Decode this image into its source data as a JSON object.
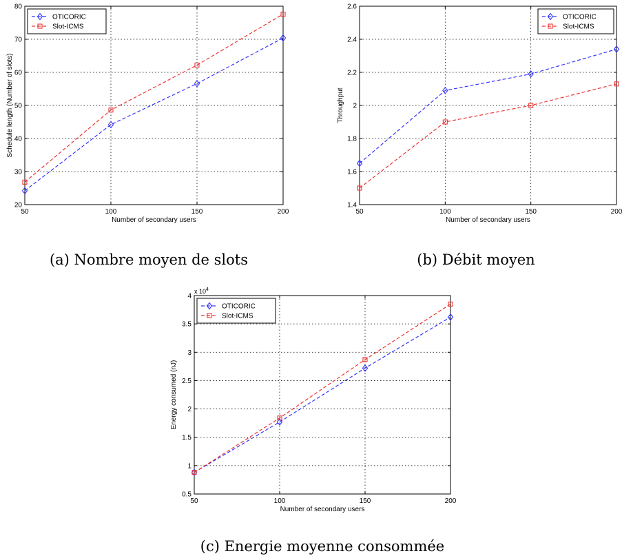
{
  "chart_data": [
    {
      "type": "line",
      "caption": "(a) Nombre moyen de slots",
      "xlabel": "Number of secondary users",
      "ylabel": "Schedule length (Number of slots)",
      "x": [
        50,
        100,
        150,
        200
      ],
      "xlim": [
        50,
        200
      ],
      "ylim": [
        20,
        80
      ],
      "xticks": [
        "50",
        "100",
        "150",
        "200"
      ],
      "yticks": [
        "20",
        "30",
        "40",
        "50",
        "60",
        "70",
        "80"
      ],
      "grid": true,
      "legend_position": "top-left",
      "series": [
        {
          "name": "OTICORIC",
          "values": [
            24.2,
            44.2,
            56.6,
            70.4
          ],
          "color": "#3333ff",
          "marker": "diamond"
        },
        {
          "name": "Slot-ICMS",
          "values": [
            26.8,
            48.6,
            62.2,
            77.6
          ],
          "color": "#ee3333",
          "marker": "square"
        }
      ]
    },
    {
      "type": "line",
      "caption": "(b) Débit moyen",
      "xlabel": "Number of secondary users",
      "ylabel": "Throughput",
      "x": [
        50,
        100,
        150,
        200
      ],
      "xlim": [
        50,
        200
      ],
      "ylim": [
        1.4,
        2.6
      ],
      "xticks": [
        "50",
        "100",
        "150",
        "200"
      ],
      "yticks": [
        "1.4",
        "1.6",
        "1.8",
        "2",
        "2.2",
        "2.4",
        "2.6"
      ],
      "grid": true,
      "legend_position": "top-right",
      "series": [
        {
          "name": "OTICORIC",
          "values": [
            1.65,
            2.09,
            2.19,
            2.34
          ],
          "color": "#3333ff",
          "marker": "diamond"
        },
        {
          "name": "Slot-ICMS",
          "values": [
            1.5,
            1.9,
            2.0,
            2.13
          ],
          "color": "#ee3333",
          "marker": "square"
        }
      ]
    },
    {
      "type": "line",
      "caption": "(c) Energie moyenne consommée",
      "xlabel": "Number of secondary users",
      "ylabel": "Energy consumed (nJ)",
      "y_scale_label": "x 10",
      "y_scale_exponent": "4",
      "x": [
        50,
        100,
        150,
        200
      ],
      "xlim": [
        50,
        200
      ],
      "ylim": [
        0.5,
        4
      ],
      "xticks": [
        "50",
        "100",
        "150",
        "200"
      ],
      "yticks": [
        "0.5",
        "1",
        "1.5",
        "2",
        "2.5",
        "3",
        "3.5",
        "4"
      ],
      "grid": true,
      "legend_position": "top-left",
      "series": [
        {
          "name": "OTICORIC",
          "values": [
            0.88,
            1.77,
            2.72,
            3.62
          ],
          "color": "#3333ff",
          "marker": "diamond"
        },
        {
          "name": "Slot-ICMS",
          "values": [
            0.88,
            1.84,
            2.87,
            3.85
          ],
          "color": "#ee3333",
          "marker": "square"
        }
      ]
    }
  ]
}
